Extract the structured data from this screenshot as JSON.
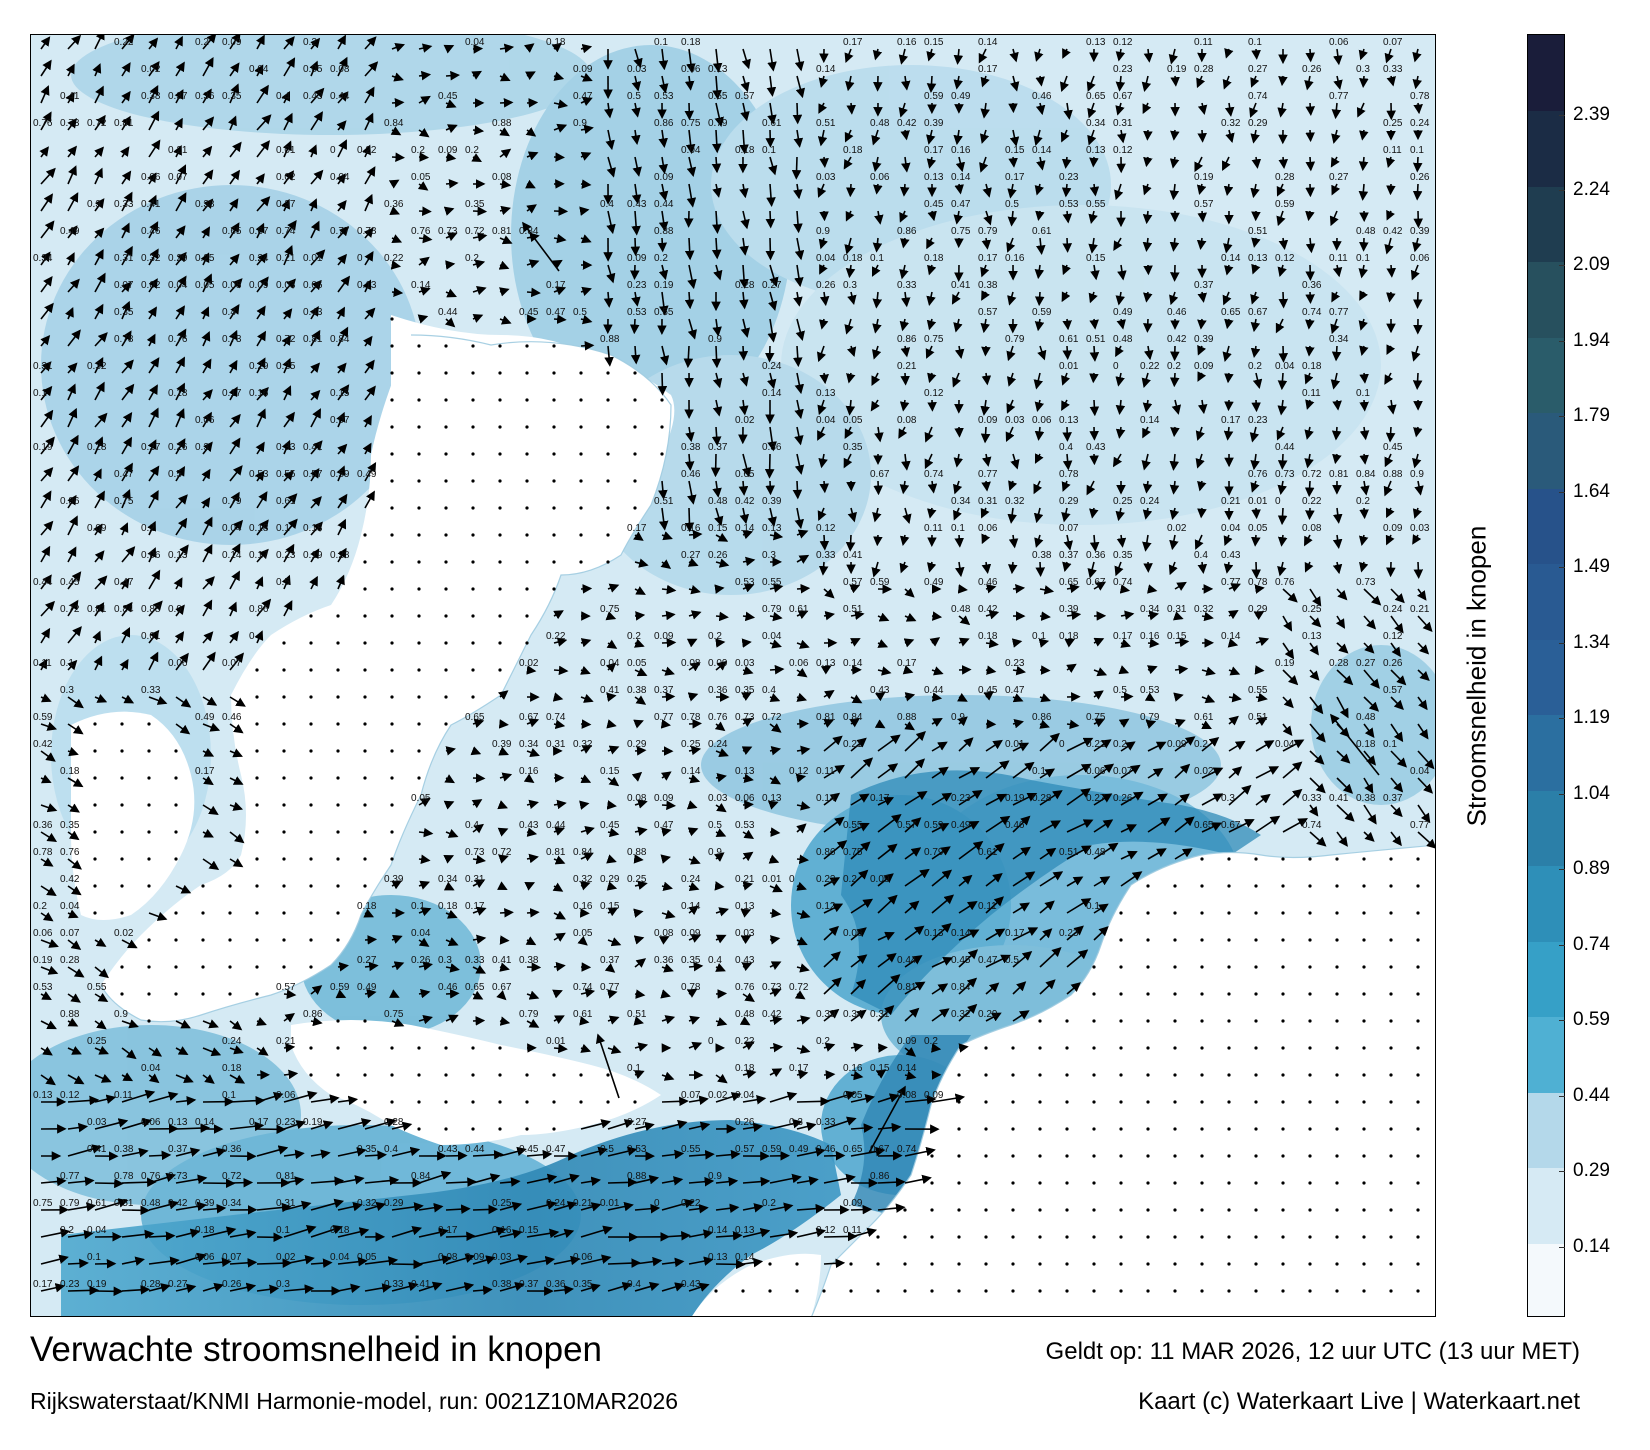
{
  "map": {
    "legend_title": "Stroomsnelheid in knopen",
    "legend_ticks": [
      "0.14",
      "0.29",
      "0.44",
      "0.59",
      "0.74",
      "0.89",
      "1.04",
      "1.19",
      "1.34",
      "1.49",
      "1.64",
      "1.79",
      "1.94",
      "2.09",
      "2.24",
      "2.39"
    ],
    "legend_range": [
      0,
      2.55
    ],
    "legend_colors": [
      "#f4f9fc",
      "#d6eaf4",
      "#b4d8ea",
      "#4fb0d3",
      "#36a0c7",
      "#2e8fb8",
      "#2b7fa8",
      "#2b6fa0",
      "#2a5f97",
      "#295a92",
      "#27528a",
      "#2a5a7a",
      "#2a5c6a",
      "#27505e",
      "#1f3d50",
      "#1b2c45",
      "#1a1d3a"
    ],
    "land_color": "#ffffff",
    "arrow_color": "#000000",
    "speed_labels": [
      "0.22",
      "0.2",
      "0.09",
      "0.2",
      "0.04",
      "0.18",
      "0.1",
      "0.18",
      "0.17",
      "0.16",
      "0.15",
      "0.14",
      "0.13",
      "0.12",
      "0.11",
      "0.1",
      "0.06",
      "0.07",
      "0.02",
      "0.04",
      "0.05",
      "0.08",
      "0.09",
      "0.03",
      "0.06",
      "0.13",
      "0.14",
      "0.17",
      "0.23",
      "0.19",
      "0.28",
      "0.27",
      "0.26",
      "0.3",
      "0.33",
      "0.41",
      "0.38",
      "0.37",
      "0.36",
      "0.35",
      "0.4",
      "0.43",
      "0.44",
      "0.45",
      "0.47",
      "0.5",
      "0.53",
      "0.55",
      "0.57",
      "0.59",
      "0.49",
      "0.46",
      "0.65",
      "0.67",
      "0.74",
      "0.77",
      "0.78",
      "0.76",
      "0.73",
      "0.72",
      "0.81",
      "0.84",
      "0.88",
      "0.9",
      "0.86",
      "0.75",
      "0.79",
      "0.61",
      "0.51",
      "0.48",
      "0.42",
      "0.39",
      "0.34",
      "0.31",
      "0.32",
      "0.29",
      "0.25",
      "0.24",
      "0.21",
      "0.01",
      "0"
    ]
  },
  "footer": {
    "title": "Verwachte stroomsnelheid in knopen",
    "model": "Rijkswaterstaat/KNMI Harmonie-model, run: 0021Z10MAR2026",
    "valid": "Geldt op: 11 MAR 2026, 12 uur UTC (13 uur MET)",
    "credit": "Kaart (c) Waterkaart Live | Waterkaart.net"
  }
}
